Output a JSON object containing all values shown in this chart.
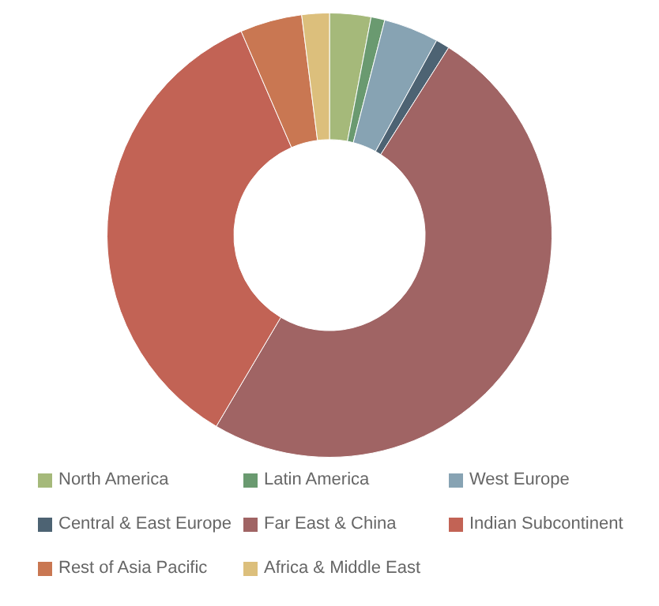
{
  "chart_data": {
    "type": "donut",
    "categories": [
      "North America",
      "Latin America",
      "West Europe",
      "Central & East Europe",
      "Far East & China",
      "Indian Subcontinent",
      "Rest of Asia Pacific",
      "Africa & Middle East"
    ],
    "values": [
      3,
      1,
      4,
      1,
      49.5,
      35,
      4.5,
      2
    ],
    "colors": [
      "#a5b97a",
      "#6a9a70",
      "#87a3b3",
      "#4d6373",
      "#a06464",
      "#c26355",
      "#c97752",
      "#dcbf7c"
    ],
    "legend": "bottom"
  }
}
